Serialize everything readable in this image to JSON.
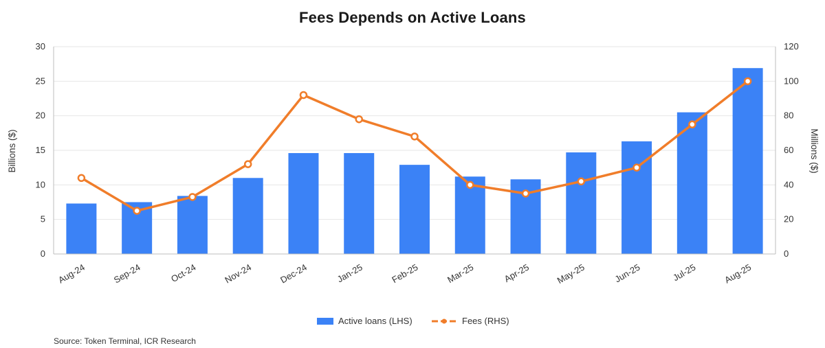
{
  "chart_data": {
    "type": "bar+line",
    "title": "Fees Depends on Active Loans",
    "categories": [
      "Aug-24",
      "Sep-24",
      "Oct-24",
      "Nov-24",
      "Dec-24",
      "Jan-25",
      "Feb-25",
      "Mar-25",
      "Apr-25",
      "May-25",
      "Jun-25",
      "Jul-25",
      "Aug-25"
    ],
    "series": [
      {
        "name": "Active loans (LHS)",
        "type": "bar",
        "axis": "left",
        "color": "#3b82f6",
        "values": [
          7.3,
          7.5,
          8.4,
          11.0,
          14.6,
          14.6,
          12.9,
          11.2,
          10.8,
          14.7,
          16.3,
          20.5,
          26.9
        ]
      },
      {
        "name": "Fees (RHS)",
        "type": "line",
        "axis": "right",
        "color": "#f07d2a",
        "values": [
          44,
          25,
          33,
          52,
          92,
          78,
          68,
          40,
          35,
          42,
          50,
          75,
          100
        ]
      }
    ],
    "ylabel_left": "Billions ($)",
    "ylabel_right": "Millions ($)",
    "ylim_left": [
      0,
      30
    ],
    "ylim_right": [
      0,
      120
    ],
    "yticks_left": [
      "0",
      "5",
      "10",
      "15",
      "20",
      "25",
      "30"
    ],
    "yticks_right": [
      "0",
      "20",
      "40",
      "60",
      "80",
      "100",
      "120"
    ],
    "legend": [
      "Active loans (LHS)",
      "Fees (RHS)"
    ],
    "grid": true
  },
  "source": "Source: Token Terminal, ICR Research"
}
